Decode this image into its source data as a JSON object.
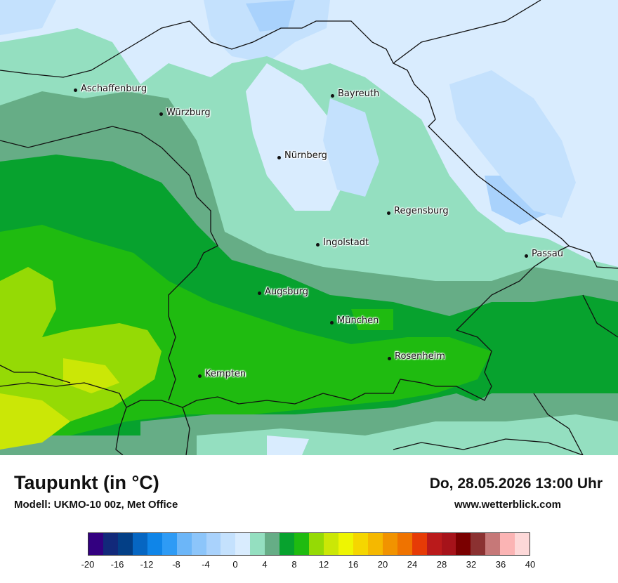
{
  "title": "Taupunkt (in °C)",
  "model": "Modell: UKMO-10 00z, Met Office",
  "datetime": "Do, 28.05.2026 13:00 Uhr",
  "website": "www.wetterblick.com",
  "cities": [
    {
      "name": "Aschaffenburg"
    },
    {
      "name": "Würzburg"
    },
    {
      "name": "Bayreuth"
    },
    {
      "name": "Nürnberg"
    },
    {
      "name": "Regensburg"
    },
    {
      "name": "Ingolstadt"
    },
    {
      "name": "Passau"
    },
    {
      "name": "Augsburg"
    },
    {
      "name": "München"
    },
    {
      "name": "Rosenheim"
    },
    {
      "name": "Kempten"
    }
  ],
  "legend": {
    "colors": [
      "#330080",
      "#12297a",
      "#033f86",
      "#0666c2",
      "#0f85e8",
      "#2e9bf5",
      "#6cb6f8",
      "#8cc5fa",
      "#a9d2fc",
      "#c4e1fd",
      "#d9ecfe",
      "#94dfc0",
      "#66ad86",
      "#07a22e",
      "#1fbb10",
      "#95da05",
      "#cbe706",
      "#eef502",
      "#f5d600",
      "#f5b800",
      "#f19300",
      "#ef7300",
      "#e63b06",
      "#ba1a1b",
      "#a6131a",
      "#7a0000",
      "#8b3131",
      "#c67878",
      "#fbb4b4",
      "#fdd8d8"
    ],
    "ticks": [
      "-20",
      "-16",
      "-12",
      "-8",
      "-4",
      "0",
      "4",
      "8",
      "12",
      "16",
      "20",
      "24",
      "28",
      "32",
      "36",
      "40"
    ]
  }
}
